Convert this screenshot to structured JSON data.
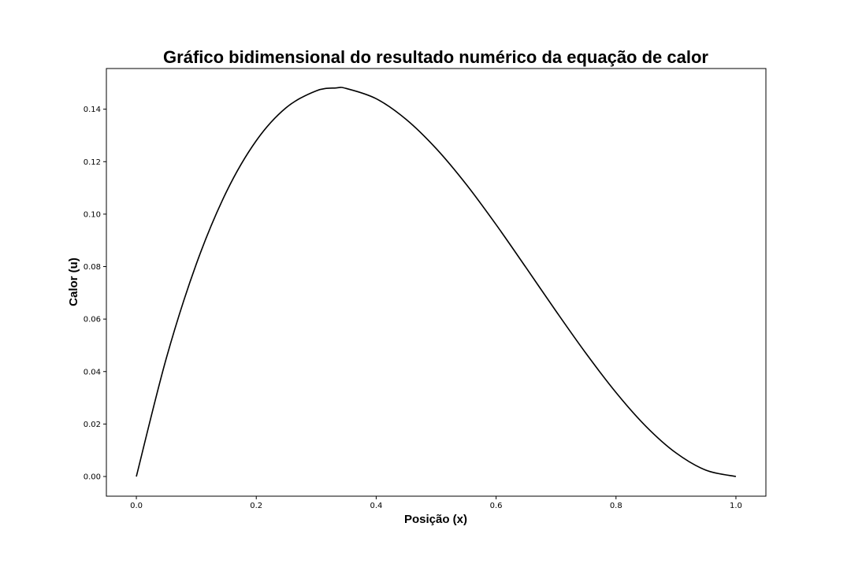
{
  "chart_data": {
    "type": "line",
    "title": "Gráfico bidimensional do resultado numérico da equação de calor",
    "xlabel": "Posição (x)",
    "ylabel": "Calor (u)",
    "xlim": [
      -0.05,
      1.05
    ],
    "ylim": [
      -0.0075,
      0.1555
    ],
    "grid": false,
    "x_ticks": [
      0.0,
      0.2,
      0.4,
      0.6,
      0.8,
      1.0
    ],
    "x_tick_labels": [
      "0.0",
      "0.2",
      "0.4",
      "0.6",
      "0.8",
      "1.0"
    ],
    "y_ticks": [
      0.0,
      0.02,
      0.04,
      0.06,
      0.08,
      0.1,
      0.12,
      0.14
    ],
    "y_tick_labels": [
      "0.00",
      "0.02",
      "0.04",
      "0.06",
      "0.08",
      "0.10",
      "0.12",
      "0.14"
    ],
    "line_color": "#000000",
    "series": [
      {
        "x": [
          0.0,
          0.05,
          0.1,
          0.15,
          0.2,
          0.25,
          0.3,
          0.333,
          0.35,
          0.4,
          0.45,
          0.5,
          0.55,
          0.6,
          0.65,
          0.7,
          0.75,
          0.8,
          0.85,
          0.9,
          0.95,
          1.0
        ],
        "values": [
          0.0,
          0.0451,
          0.081,
          0.1084,
          0.128,
          0.1406,
          0.147,
          0.1481,
          0.1479,
          0.144,
          0.1361,
          0.125,
          0.1114,
          0.096,
          0.0796,
          0.063,
          0.0469,
          0.032,
          0.0191,
          0.009,
          0.0024,
          0.0
        ]
      }
    ]
  }
}
